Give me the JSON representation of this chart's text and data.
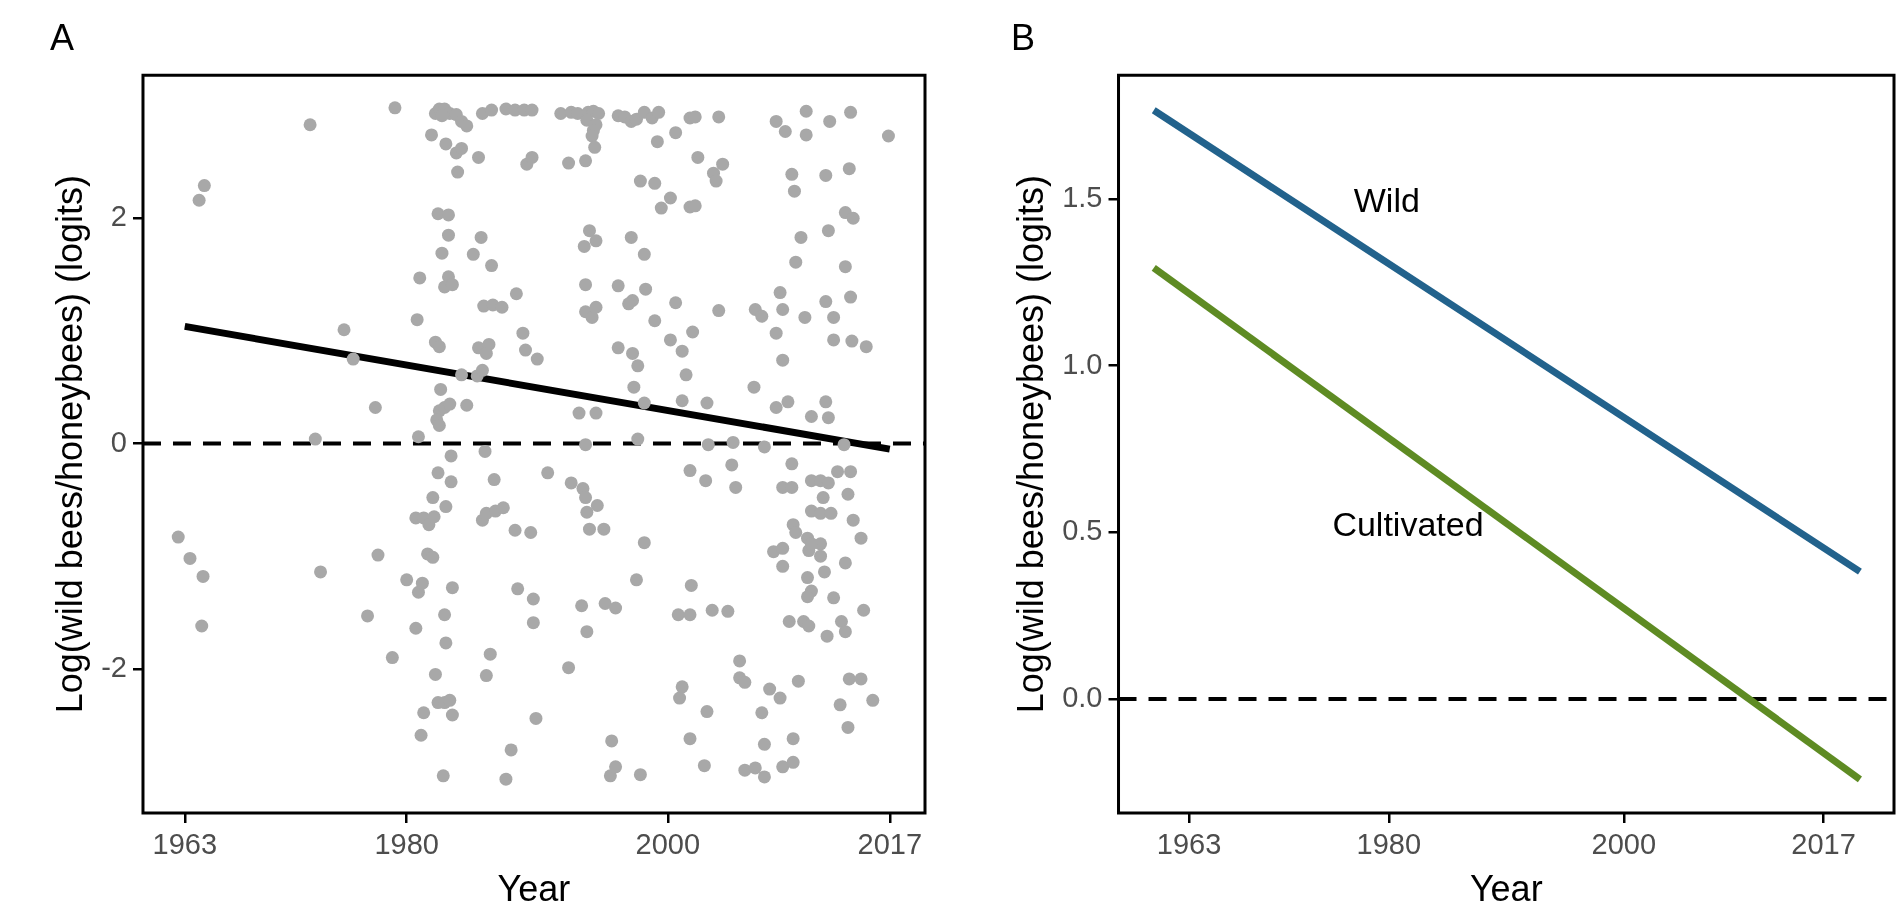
{
  "chart_data": [
    {
      "type": "scatter",
      "title": "A",
      "xlabel": "Year",
      "ylabel": "Log(wild bees/honeybees) (logits)",
      "xlim": [
        1959.8,
        2019.7
      ],
      "ylim": [
        -3.28,
        3.27
      ],
      "xticks": [
        1963,
        1980,
        2000,
        2017
      ],
      "yticks": [
        -2,
        0,
        2
      ],
      "grid": false,
      "legend": false,
      "ref_lines": [
        {
          "axis": "y",
          "value": 0,
          "color": "#000000",
          "line_style": "dashed"
        }
      ],
      "series": [
        {
          "marker": "circle",
          "color": "#a8a8a8",
          "x": [
            1962.5,
            1963.4,
            1964.4,
            1964.3,
            1964.1,
            1964.5,
            1972.6,
            1973.0,
            1973.4,
            1975.2,
            1975.9,
            1977.6,
            1977.8,
            1977.0,
            1978.9,
            1979.1,
            1980.0,
            1980.7,
            1980.9,
            1981.2,
            1981.1,
            1981.3,
            1980.8,
            1981.0,
            1980.9,
            1980.7,
            1981.3,
            1981.7,
            1982.1,
            1981.6,
            1982.0,
            1982.0,
            1982.4,
            1983.0,
            1983.4,
            1983.4,
            1983.5,
            1982.9,
            1983.0,
            1982.2,
            1982.4,
            1982.9,
            1983.3,
            1983.5,
            1982.8,
            1982.4,
            1983.2,
            1983.2,
            1982.7,
            1983.2,
            1982.9,
            1983.5,
            1982.2,
            1982.5,
            1982.6,
            1982.5,
            1982.9,
            1983.3,
            1982.3,
            1982.5,
            1984.6,
            1984.2,
            1985.4,
            1985.8,
            1985.5,
            1986.3,
            1986.1,
            1985.7,
            1985.1,
            1986.5,
            1985.9,
            1986.6,
            1987.3,
            1988.4,
            1988.9,
            1989.1,
            1986.0,
            1986.7,
            1985.8,
            1986.1,
            1986.8,
            1987.4,
            1988.3,
            1989.5,
            1988.5,
            1989.7,
            1989.7,
            1986.4,
            1986.1,
            1989.9,
            1988.0,
            1987.6,
            1982.2,
            1982.5,
            1982.9,
            1983.3,
            1982.7,
            1983.8,
            1984.2,
            1984.6,
            1981.9,
            1983.0,
            1983.8,
            1984.2,
            1983.9,
            1985.5,
            1985.8,
            1986.5,
            1987.6,
            1988.3,
            1989.0,
            1989.2,
            1989.6,
            1989.6,
            1991.8,
            1992.6,
            1993.1,
            1993.9,
            1994.3,
            1994.7,
            1993.8,
            1994.5,
            1994.3,
            1994.2,
            1994.4,
            1996.2,
            1996.7,
            1997.2,
            1997.6,
            1998.2,
            1998.8,
            1999.3,
            1999.2,
            2000.6,
            2001.7,
            2002.1,
            2003.9,
            2008.3,
            2009.0,
            2010.6,
            2010.6,
            2012.4,
            2014.0,
            2016.9,
            1992.4,
            1993.7,
            1997.9,
            1999.0,
            2000.2,
            1999.5,
            2001.7,
            2002.1,
            2002.3,
            2003.5,
            2003.7,
            2004.2,
            2009.5,
            2009.7,
            2012.1,
            2013.9,
            2013.6,
            2014.2,
            2010.2,
            2012.3,
            2009.8,
            2013.6,
            1994.0,
            1993.6,
            1994.5,
            1997.2,
            1998.2,
            1993.7,
            1996.2,
            1997.3,
            1997.0,
            1998.3,
            1993.7,
            1994.2,
            1994.5,
            1999.0,
            2000.6,
            2003.9,
            2006.7,
            2007.2,
            2008.6,
            2008.8,
            2010.5,
            2012.1,
            2012.7,
            2014.0,
            2008.3,
            2008.8,
            2012.7,
            2014.1,
            2015.2,
            1996.2,
            1997.3,
            1997.7,
            2000.2,
            2001.1,
            2001.9,
            2001.4,
            1997.4,
            1998.2,
            2001.1,
            2003.0,
            2006.6,
            2008.3,
            2009.2,
            2011.0,
            2012.1,
            2012.3,
            1993.2,
            1994.5,
            1990.0,
            1993.7,
            1997.7,
            2003.1,
            2005.0,
            2007.4,
            2013.5,
            1990.8,
            1992.6,
            1993.5,
            1993.7,
            1993.8,
            1994.6,
            1994.0,
            1995.1,
            1998.2,
            2001.7,
            2002.9,
            2004.9,
            2005.2,
            2009.5,
            2008.8,
            2009.5,
            2011.0,
            2011.7,
            2012.3,
            2013.0,
            2014.0,
            2011.9,
            2013.8,
            2011.0,
            2011.7,
            2012.5,
            2009.6,
            2009.8,
            2010.7,
            2011.7,
            2014.2,
            2014.8,
            2008.1,
            2008.8,
            2008.8,
            2010.8,
            2011.7,
            2011.0,
            2012.0,
            2013.6,
            2010.7,
            2011.0,
            2010.7,
            2012.7,
            2015.0,
            2009.3,
            2010.4,
            2010.8,
            2013.3,
            2013.6,
            2012.2,
            1997.6,
            1993.4,
            1993.8,
            1995.2,
            1996.0,
            2000.8,
            2001.7,
            2003.4,
            2004.6,
            2001.8,
            1992.4,
            2005.5,
            2005.5,
            2005.9,
            2000.9,
            2001.1,
            2003.0,
            2007.8,
            2008.6,
            2007.2,
            2010.0,
            2013.9,
            2014.8,
            2015.7,
            2013.2,
            2013.8,
            1995.7,
            2001.7,
            2007.4,
            2009.6,
            1995.6,
            1996.0,
            1997.9,
            2002.8,
            2005.9,
            2006.7,
            2007.4,
            2008.8,
            2009.6
          ],
          "values": [
            -0.83,
            -1.02,
            -1.18,
            -1.62,
            2.16,
            2.29,
            2.83,
            0.04,
            -1.14,
            1.01,
            0.75,
            0.32,
            -0.99,
            -1.53,
            -1.9,
            2.98,
            -1.21,
            -1.64,
            -1.32,
            -1.24,
            -2.59,
            -2.39,
            1.1,
            1.47,
            0.06,
            -0.66,
            -0.66,
            -0.72,
            -0.65,
            -0.98,
            -1.01,
            -0.48,
            -0.26,
            -0.56,
            -0.11,
            -0.34,
            -1.28,
            -1.52,
            -1.77,
            -2.05,
            -2.3,
            -2.3,
            -2.28,
            -2.41,
            -2.95,
            2.04,
            2.03,
            1.85,
            1.69,
            1.48,
            1.39,
            1.41,
            0.9,
            0.86,
            0.48,
            0.29,
            0.32,
            0.35,
            0.21,
            0.16,
            0.34,
            0.61,
            0.6,
            0.65,
            0.85,
            0.88,
            0.8,
            1.83,
            1.68,
            1.58,
            1.22,
            1.23,
            1.21,
            1.33,
            0.98,
            0.83,
            -0.07,
            -0.32,
            -0.68,
            -0.62,
            -0.6,
            -0.57,
            -0.77,
            -0.79,
            -1.29,
            -1.38,
            -1.59,
            -1.87,
            -2.06,
            -2.44,
            -2.72,
            -2.98,
            2.93,
            2.97,
            2.97,
            2.93,
            2.91,
            2.92,
            2.86,
            2.82,
            2.74,
            2.66,
            2.58,
            2.62,
            2.41,
            2.54,
            2.93,
            2.96,
            2.97,
            2.96,
            2.96,
            2.48,
            2.54,
            2.96,
            2.93,
            2.94,
            2.93,
            2.94,
            2.95,
            2.93,
            2.87,
            2.83,
            2.78,
            2.73,
            2.63,
            2.91,
            2.9,
            2.86,
            2.88,
            2.94,
            2.89,
            2.94,
            2.68,
            2.76,
            2.89,
            2.9,
            2.9,
            2.86,
            2.77,
            2.95,
            2.74,
            2.86,
            2.94,
            2.73,
            2.49,
            2.51,
            2.33,
            2.31,
            2.18,
            2.09,
            2.1,
            2.11,
            2.54,
            2.4,
            2.33,
            2.48,
            2.39,
            2.24,
            2.38,
            2.44,
            2.05,
            2.0,
            1.83,
            1.89,
            1.61,
            1.57,
            1.89,
            1.75,
            1.8,
            1.83,
            1.68,
            1.41,
            1.4,
            1.27,
            1.24,
            1.37,
            1.17,
            1.12,
            1.21,
            1.09,
            1.25,
            1.18,
            1.19,
            1.13,
            1.34,
            1.19,
            1.12,
            1.26,
            1.12,
            1.3,
            0.98,
            0.74,
            0.92,
            0.91,
            0.86,
            0.85,
            0.8,
            0.69,
            0.92,
            0.82,
            0.99,
            0.61,
            0.5,
            0.36,
            0.38,
            0.36,
            0.5,
            0.32,
            0.37,
            0.24,
            0.37,
            0.23,
            0.27,
            0.27,
            0.75,
            -0.01,
            0.04,
            -0.01,
            0.01,
            -0.03,
            -0.01,
            -0.26,
            -0.35,
            -0.4,
            -0.48,
            -0.61,
            -0.55,
            -0.76,
            -0.76,
            -0.88,
            -0.24,
            -0.33,
            -0.19,
            -0.39,
            -0.18,
            -0.39,
            -0.39,
            -0.33,
            -0.33,
            -0.35,
            -0.25,
            -0.25,
            -0.48,
            -0.45,
            -0.6,
            -0.62,
            -0.62,
            -0.72,
            -0.79,
            -0.84,
            -0.89,
            -0.68,
            -0.84,
            -0.96,
            -0.93,
            -1.09,
            -0.95,
            -1.0,
            -0.89,
            -1.14,
            -1.06,
            -1.19,
            -1.31,
            -1.36,
            -1.37,
            -1.48,
            -1.58,
            -1.58,
            -1.62,
            -1.58,
            -1.67,
            -1.71,
            -1.21,
            -1.44,
            -1.67,
            -1.42,
            -1.46,
            -1.52,
            -1.52,
            -1.48,
            -1.49,
            -1.26,
            -1.99,
            -1.93,
            -2.08,
            -2.12,
            -2.26,
            -2.16,
            -2.38,
            -2.18,
            -2.26,
            -2.39,
            -2.11,
            -2.09,
            -2.09,
            -2.28,
            -2.32,
            -2.52,
            -2.64,
            -2.62,
            -2.67,
            -2.62,
            -2.95,
            -2.87,
            -2.94,
            -2.86,
            -2.9,
            -2.88,
            -2.96,
            -2.87,
            -2.83
          ]
        },
        {
          "type": "line",
          "color": "#000000",
          "x": [
            1963,
            2017
          ],
          "values": [
            1.04,
            -0.05
          ]
        }
      ]
    },
    {
      "type": "line",
      "title": "B",
      "xlabel": "Year",
      "ylabel": "Log(wild bees/honeybees) (logits)",
      "xlim": [
        1957,
        2023
      ],
      "ylim": [
        -0.342,
        1.871
      ],
      "xticks": [
        1963,
        1980,
        2000,
        2017
      ],
      "yticks": [
        {
          "value": 0,
          "label": "0.0"
        },
        0.5,
        {
          "value": 1,
          "label": "1.0"
        },
        1.5
      ],
      "grid": false,
      "legend": false,
      "ref_lines": [
        {
          "axis": "y",
          "value": 0,
          "color": "#000000",
          "line_style": "dashed"
        }
      ],
      "series": [
        {
          "name": "Wild",
          "color": "#22628c",
          "x": [
            1960,
            2020.1
          ],
          "values": [
            1.766,
            0.382
          ]
        },
        {
          "name": "Cultivated",
          "color": "#5e8b23",
          "x": [
            1960,
            2020.1
          ],
          "values": [
            1.293,
            -0.241
          ]
        }
      ]
    }
  ]
}
